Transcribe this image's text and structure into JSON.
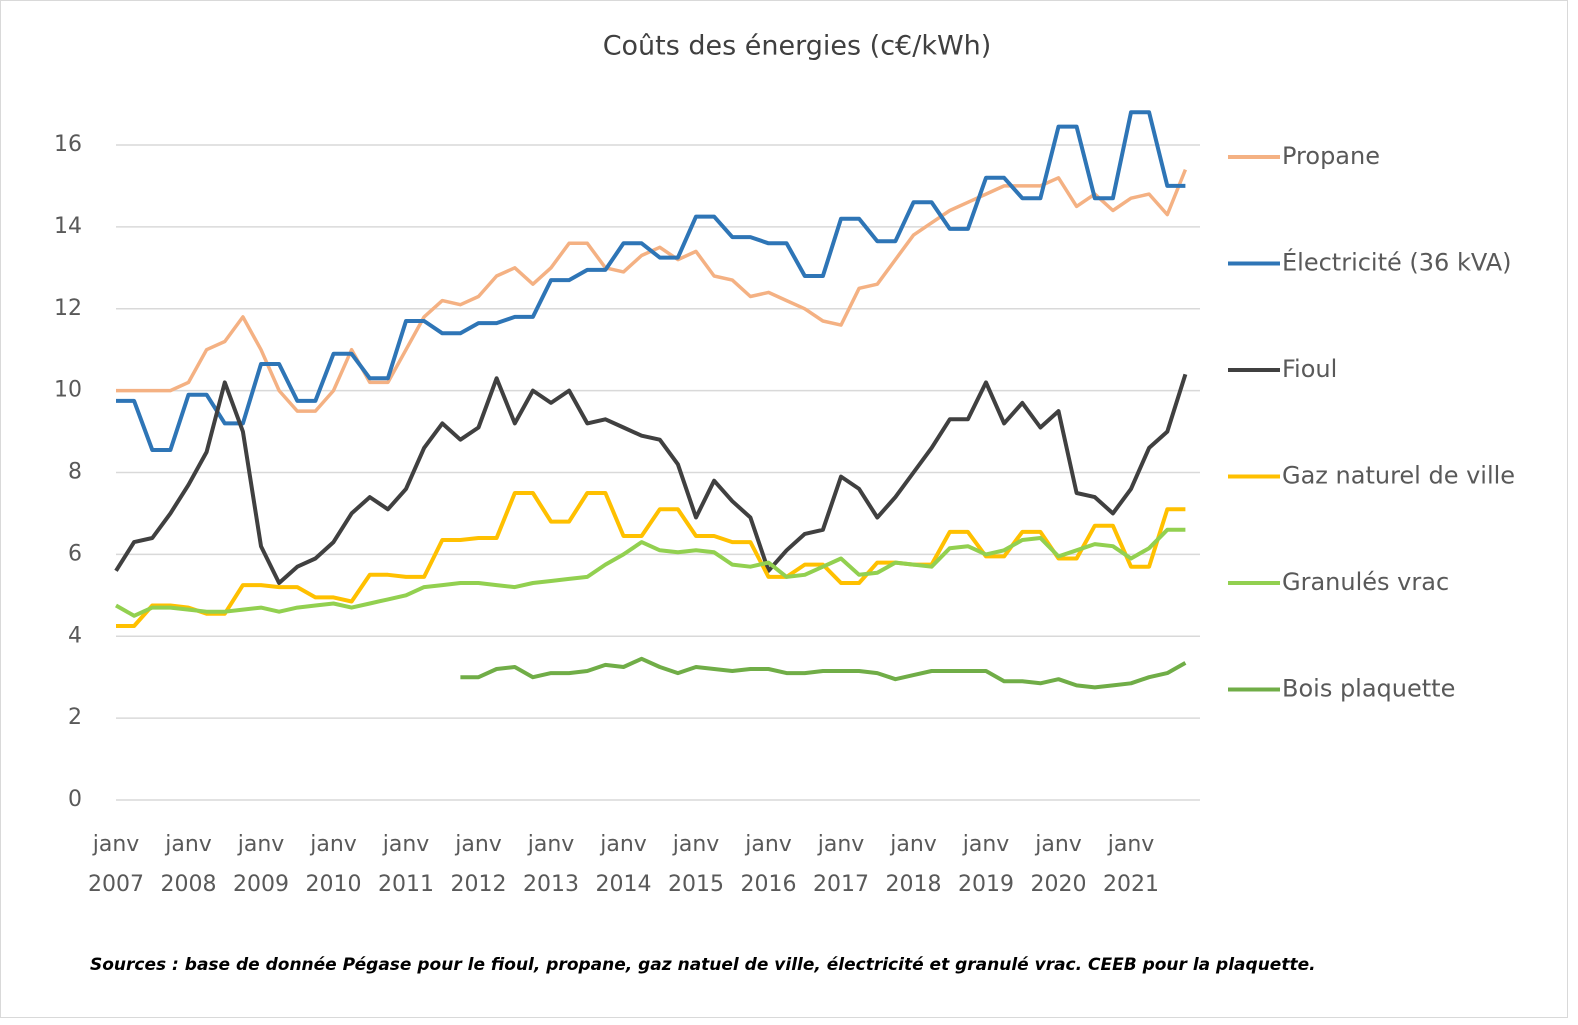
{
  "chart_data": {
    "type": "line",
    "title": "Coûts des énergies (c€/kWh)",
    "note": "Sources : base de donnée Pégase pour le fioul, propane, gaz natuel de ville, électricité et granulé vrac. CEEB pour la plaquette.",
    "categories": [
      "janv 2007",
      null,
      null,
      null,
      "janv 2008",
      null,
      null,
      null,
      "janv 2009",
      null,
      null,
      null,
      "janv 2010",
      null,
      null,
      null,
      "janv 2011",
      null,
      null,
      null,
      "janv 2012",
      null,
      null,
      null,
      "janv 2013",
      null,
      null,
      null,
      "janv 2014",
      null,
      null,
      null,
      "janv 2015",
      null,
      null,
      null,
      "janv 2016",
      null,
      null,
      null,
      "janv 2017",
      null,
      null,
      null,
      "janv 2018",
      null,
      null,
      null,
      "janv 2019",
      null,
      null,
      null,
      "janv 2020",
      null,
      null,
      null,
      "janv 2021",
      null,
      null,
      null
    ],
    "ylim": [
      0,
      16
    ],
    "yticks": [
      0,
      2,
      4,
      6,
      8,
      10,
      12,
      14,
      16
    ],
    "grid": true,
    "legend": "right",
    "series": [
      {
        "name": "Propane",
        "color": "#f4b183",
        "values": [
          10,
          10,
          10,
          10,
          10.2,
          11,
          11.2,
          11.8,
          11,
          10,
          9.5,
          9.5,
          10,
          11,
          10.2,
          10.2,
          11,
          11.8,
          12.2,
          12.1,
          12.3,
          12.8,
          13,
          12.6,
          13,
          13.6,
          13.6,
          13,
          12.9,
          13.3,
          13.5,
          13.2,
          13.4,
          12.8,
          12.7,
          12.3,
          12.4,
          12.2,
          12,
          11.7,
          11.6,
          12.5,
          12.6,
          13.2,
          13.8,
          14.1,
          14.4,
          14.6,
          14.8,
          15,
          15,
          15,
          15.2,
          14.5,
          14.8,
          14.4,
          14.7,
          14.8,
          14.3,
          15.4
        ]
      },
      {
        "name": "Électricité (36 kVA)",
        "color": "#2e75b6",
        "values": [
          9.75,
          9.75,
          8.55,
          8.55,
          9.9,
          9.9,
          9.2,
          9.2,
          10.65,
          10.65,
          9.75,
          9.75,
          10.9,
          10.9,
          10.3,
          10.3,
          11.7,
          11.7,
          11.4,
          11.4,
          11.65,
          11.65,
          11.8,
          11.8,
          12.7,
          12.7,
          12.95,
          12.95,
          13.6,
          13.6,
          13.25,
          13.25,
          14.25,
          14.25,
          13.75,
          13.75,
          13.6,
          13.6,
          12.8,
          12.8,
          14.2,
          14.2,
          13.65,
          13.65,
          14.6,
          14.6,
          13.95,
          13.95,
          15.2,
          15.2,
          14.7,
          14.7,
          16.45,
          16.45,
          14.7,
          14.7,
          16.8,
          16.8,
          15,
          15
        ]
      },
      {
        "name": "Fioul",
        "color": "#404040",
        "values": [
          5.6,
          6.3,
          6.4,
          7,
          7.7,
          8.5,
          10.2,
          9,
          6.2,
          5.3,
          5.7,
          5.9,
          6.3,
          7,
          7.4,
          7.1,
          7.6,
          8.6,
          9.2,
          8.8,
          9.1,
          10.3,
          9.2,
          10,
          9.7,
          10,
          9.2,
          9.3,
          9.1,
          8.9,
          8.8,
          8.2,
          6.9,
          7.8,
          7.3,
          6.9,
          5.6,
          6.1,
          6.5,
          6.6,
          7.9,
          7.6,
          6.9,
          7.4,
          8,
          8.6,
          9.3,
          9.3,
          10.2,
          9.2,
          9.7,
          9.1,
          9.5,
          7.5,
          7.4,
          7,
          7.6,
          8.6,
          9,
          10.4
        ]
      },
      {
        "name": "Gaz naturel de ville",
        "color": "#ffc000",
        "values": [
          4.25,
          4.25,
          4.75,
          4.75,
          4.7,
          4.55,
          4.55,
          5.25,
          5.25,
          5.2,
          5.2,
          4.95,
          4.95,
          4.85,
          5.5,
          5.5,
          5.45,
          5.45,
          6.35,
          6.35,
          6.4,
          6.4,
          7.5,
          7.5,
          6.8,
          6.8,
          7.5,
          7.5,
          6.45,
          6.45,
          7.1,
          7.1,
          6.45,
          6.45,
          6.3,
          6.3,
          5.45,
          5.45,
          5.75,
          5.75,
          5.3,
          5.3,
          5.8,
          5.8,
          5.75,
          5.75,
          6.55,
          6.55,
          5.95,
          5.95,
          6.55,
          6.55,
          5.9,
          5.9,
          6.7,
          6.7,
          5.7,
          5.7,
          7.1,
          7.1
        ]
      },
      {
        "name": "Granulés vrac",
        "color": "#92d050",
        "values": [
          4.75,
          4.5,
          4.7,
          4.7,
          4.65,
          4.6,
          4.6,
          4.65,
          4.7,
          4.6,
          4.7,
          4.75,
          4.8,
          4.7,
          4.8,
          4.9,
          5,
          5.2,
          5.25,
          5.3,
          5.3,
          5.25,
          5.2,
          5.3,
          5.35,
          5.4,
          5.45,
          5.75,
          6,
          6.3,
          6.1,
          6.05,
          6.1,
          6.05,
          5.75,
          5.7,
          5.8,
          5.45,
          5.5,
          5.7,
          5.9,
          5.5,
          5.55,
          5.8,
          5.75,
          5.7,
          6.15,
          6.2,
          6,
          6.1,
          6.35,
          6.4,
          5.95,
          6.1,
          6.25,
          6.2,
          5.9,
          6.15,
          6.6,
          6.6
        ]
      },
      {
        "name": "Bois plaquette",
        "color": "#70ad47",
        "values": [
          null,
          null,
          null,
          null,
          null,
          null,
          null,
          null,
          null,
          null,
          null,
          null,
          null,
          null,
          null,
          null,
          null,
          null,
          null,
          3,
          3,
          3.2,
          3.25,
          3,
          3.1,
          3.1,
          3.15,
          3.3,
          3.25,
          3.45,
          3.25,
          3.1,
          3.25,
          3.2,
          3.15,
          3.2,
          3.2,
          3.1,
          3.1,
          3.15,
          3.15,
          3.15,
          3.1,
          2.95,
          3.05,
          3.15,
          3.15,
          3.15,
          3.15,
          2.9,
          2.9,
          2.85,
          2.95,
          2.8,
          2.75,
          2.8,
          2.85,
          3,
          3.1,
          3.35
        ]
      }
    ]
  }
}
